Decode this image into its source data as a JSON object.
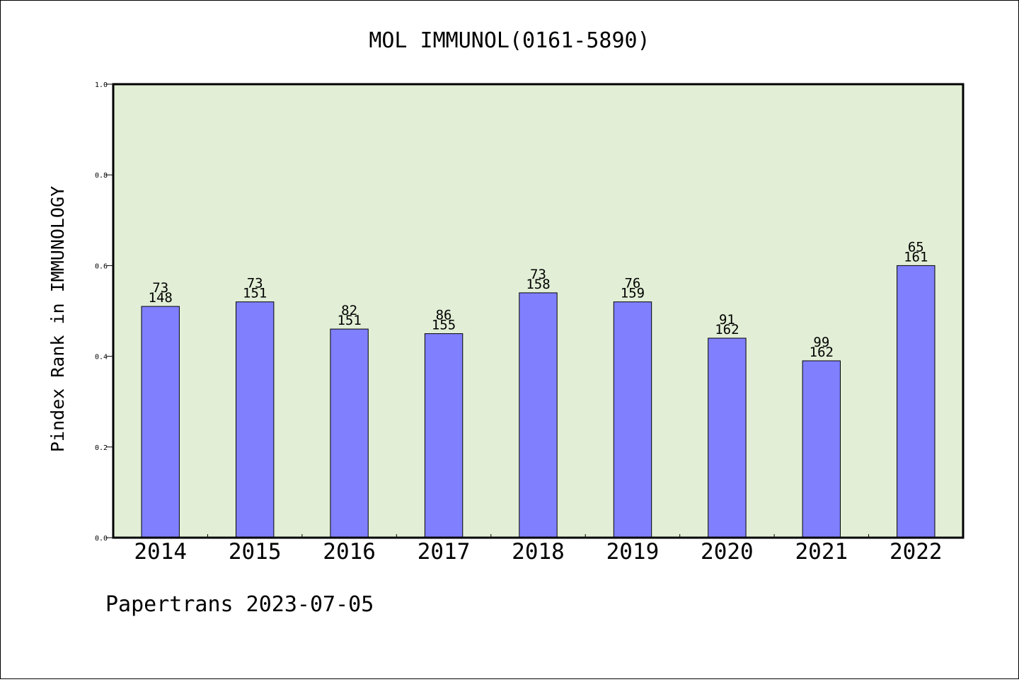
{
  "chart_data": {
    "type": "bar",
    "title": "MOL IMMUNOL(0161-5890)",
    "ylabel": "Pindex Rank in IMMUNOLOGY",
    "xlabel": "",
    "ylim": [
      0,
      1.0
    ],
    "yticks": [
      "0.0",
      "0.2",
      "0.4",
      "0.6",
      "0.8",
      "1.0"
    ],
    "categories": [
      "2014",
      "2015",
      "2016",
      "2017",
      "2018",
      "2019",
      "2020",
      "2021",
      "2022"
    ],
    "values": [
      0.51,
      0.52,
      0.46,
      0.45,
      0.54,
      0.52,
      0.44,
      0.39,
      0.6
    ],
    "rank_labels": [
      "73",
      "73",
      "82",
      "86",
      "73",
      "76",
      "91",
      "99",
      "65"
    ],
    "total_labels": [
      "148",
      "151",
      "151",
      "155",
      "158",
      "159",
      "162",
      "162",
      "161"
    ],
    "grid": false,
    "colors": {
      "plot_background": "#e2efd6",
      "bar": "#8080ff",
      "bar_edge": "#000000"
    }
  },
  "footer": {
    "credit": "Papertrans 2023-07-05"
  }
}
